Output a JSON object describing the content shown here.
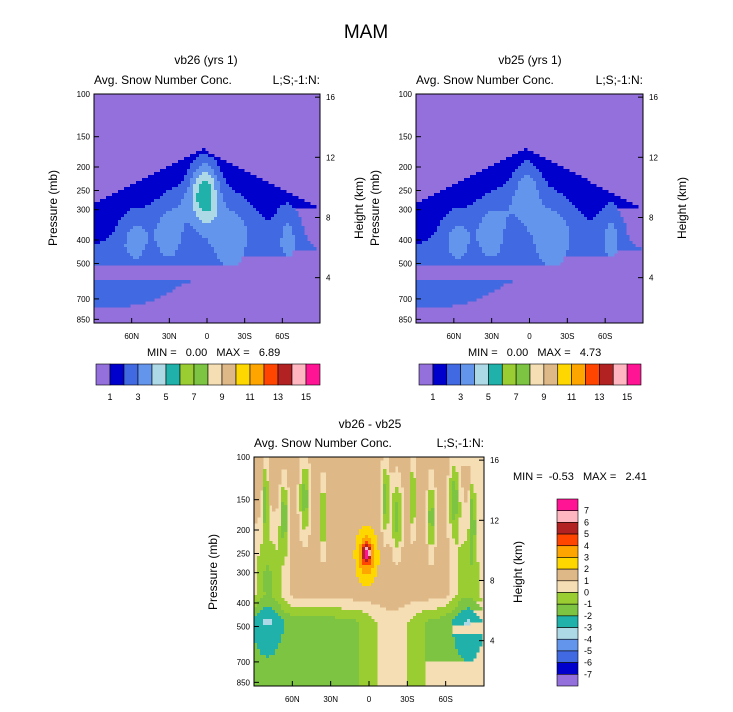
{
  "figure": {
    "title": "MAM"
  },
  "colors": {
    "abs_palette": [
      "#9370db",
      "#0000cd",
      "#4169e1",
      "#6495ed",
      "#add8e6",
      "#20b2aa",
      "#9acd32",
      "#7cc441",
      "#f5deb3",
      "#deb887",
      "#ffd700",
      "#ffa500",
      "#ff4500",
      "#b22222",
      "#ffb6c1",
      "#ff1493"
    ],
    "diff_palette": [
      "#9370db",
      "#0000cd",
      "#4169e1",
      "#6495ed",
      "#add8e6",
      "#20b2aa",
      "#7cc441",
      "#9acd32",
      "#f5deb3",
      "#deb887",
      "#ffd700",
      "#ffa500",
      "#ff4500",
      "#b22222",
      "#ffb6c1",
      "#ff1493"
    ]
  },
  "chart_data": [
    {
      "id": "panel-vb26",
      "type": "contour",
      "title": "vb26 (yrs 1)",
      "left_label": "Avg. Snow Number Conc.",
      "right_label": "L;S;-1:N:",
      "ylabel": "Pressure (mb)",
      "ylabel_right": "Height (km)",
      "y_ticks": [
        "100",
        "150",
        "200",
        "250",
        "300",
        "400",
        "500",
        "700",
        "850"
      ],
      "y_ticks_right": [
        "16",
        "12",
        "8",
        "4"
      ],
      "x_ticks": [
        "60N",
        "30N",
        "0",
        "30S",
        "60S"
      ],
      "stats": "MIN =   0.00   MAX =   6.89",
      "min": 0.0,
      "max": 6.89,
      "contour_levels": [
        1,
        2,
        3,
        4,
        5,
        6,
        7,
        8,
        9,
        10,
        11,
        12,
        13,
        14,
        15
      ],
      "colorbar_labels": [
        "1",
        "3",
        "5",
        "7",
        "9",
        "11",
        "13",
        "15"
      ],
      "peak_level": 6
    },
    {
      "id": "panel-vb25",
      "type": "contour",
      "title": "vb25 (yrs 1)",
      "left_label": "Avg. Snow Number Conc.",
      "right_label": "L;S;-1:N:",
      "ylabel": "Pressure (mb)",
      "ylabel_right": "Height (km)",
      "y_ticks": [
        "100",
        "150",
        "200",
        "250",
        "300",
        "400",
        "500",
        "700",
        "850"
      ],
      "y_ticks_right": [
        "16",
        "12",
        "8",
        "4"
      ],
      "x_ticks": [
        "60N",
        "30N",
        "0",
        "30S",
        "60S"
      ],
      "stats": "MIN =   0.00   MAX =   4.73",
      "min": 0.0,
      "max": 4.73,
      "contour_levels": [
        1,
        2,
        3,
        4,
        5,
        6,
        7,
        8,
        9,
        10,
        11,
        12,
        13,
        14,
        15
      ],
      "colorbar_labels": [
        "1",
        "3",
        "5",
        "7",
        "9",
        "11",
        "13",
        "15"
      ],
      "peak_level": 4
    },
    {
      "id": "panel-diff",
      "type": "contour",
      "title": "vb26 - vb25",
      "left_label": "Avg. Snow Number Conc.",
      "right_label": "L;S;-1:N:",
      "ylabel": "Pressure (mb)",
      "ylabel_right": "Height (km)",
      "y_ticks": [
        "100",
        "150",
        "200",
        "250",
        "300",
        "400",
        "500",
        "700",
        "850"
      ],
      "y_ticks_right": [
        "16",
        "12",
        "8",
        "4"
      ],
      "x_ticks": [
        "60N",
        "30N",
        "0",
        "30S",
        "60S"
      ],
      "stats": "MIN =  -0.53   MAX =   2.41",
      "min": -0.53,
      "max": 2.41,
      "contour_levels": [
        -7,
        -6,
        -5,
        -4,
        -3,
        -2,
        -1,
        0,
        1,
        2,
        3,
        4,
        5,
        6,
        7
      ],
      "colorbar_labels": [
        "7",
        "6",
        "5",
        "4",
        "3",
        "2",
        "1",
        "0",
        "-1",
        "-2",
        "-3",
        "-4",
        "-5",
        "-6",
        "-7"
      ]
    }
  ]
}
